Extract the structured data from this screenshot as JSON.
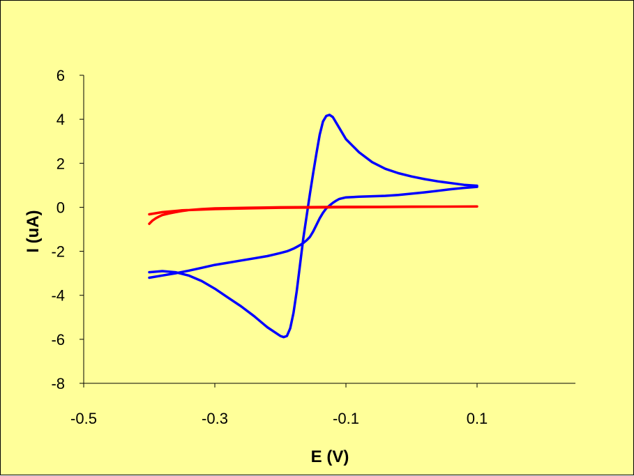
{
  "chart_data": {
    "type": "line",
    "title": "",
    "xlabel": "E (V)",
    "ylabel": "I (uA)",
    "xlim": [
      -0.5,
      0.25
    ],
    "ylim": [
      -8,
      6
    ],
    "x_ticks": [
      -0.5,
      -0.3,
      -0.1,
      0.1
    ],
    "x_tick_labels": [
      "-0.5",
      "-0.3",
      "-0.1",
      "0.1"
    ],
    "y_ticks": [
      -8,
      -6,
      -4,
      -2,
      0,
      2,
      4,
      6
    ],
    "y_tick_labels": [
      "-8",
      "-6",
      "-4",
      "-2",
      "0",
      "2",
      "4",
      "6"
    ],
    "grid": false,
    "legend": "none",
    "colors": {
      "background": "#ffff99",
      "border": "#000000"
    },
    "series": [
      {
        "color": "#0000ff",
        "x": [
          -0.4,
          -0.38,
          -0.36,
          -0.34,
          -0.32,
          -0.3,
          -0.28,
          -0.26,
          -0.24,
          -0.22,
          -0.2,
          -0.195,
          -0.19,
          -0.185,
          -0.18,
          -0.175,
          -0.17,
          -0.165,
          -0.16,
          -0.155,
          -0.15,
          -0.145,
          -0.14,
          -0.135,
          -0.13,
          -0.125,
          -0.12,
          -0.11,
          -0.1,
          -0.08,
          -0.06,
          -0.04,
          -0.02,
          0.0,
          0.02,
          0.04,
          0.06,
          0.08,
          0.1,
          0.1,
          0.08,
          0.06,
          0.04,
          0.02,
          0.0,
          -0.02,
          -0.04,
          -0.06,
          -0.08,
          -0.1,
          -0.11,
          -0.115,
          -0.12,
          -0.125,
          -0.13,
          -0.135,
          -0.14,
          -0.145,
          -0.15,
          -0.155,
          -0.16,
          -0.165,
          -0.17,
          -0.175,
          -0.18,
          -0.185,
          -0.19,
          -0.2,
          -0.21,
          -0.22,
          -0.24,
          -0.26,
          -0.28,
          -0.3,
          -0.32,
          -0.34,
          -0.36,
          -0.38,
          -0.4
        ],
        "y": [
          -2.95,
          -2.9,
          -2.95,
          -3.1,
          -3.35,
          -3.7,
          -4.1,
          -4.5,
          -4.95,
          -5.45,
          -5.85,
          -5.9,
          -5.85,
          -5.5,
          -4.8,
          -3.8,
          -2.6,
          -1.4,
          -0.4,
          0.6,
          1.55,
          2.45,
          3.3,
          3.9,
          4.15,
          4.2,
          4.1,
          3.6,
          3.1,
          2.5,
          2.05,
          1.75,
          1.55,
          1.4,
          1.28,
          1.18,
          1.1,
          1.02,
          0.98,
          0.93,
          0.88,
          0.82,
          0.75,
          0.68,
          0.62,
          0.56,
          0.52,
          0.5,
          0.48,
          0.45,
          0.38,
          0.3,
          0.2,
          0.08,
          -0.05,
          -0.25,
          -0.5,
          -0.8,
          -1.1,
          -1.35,
          -1.5,
          -1.62,
          -1.72,
          -1.8,
          -1.88,
          -1.94,
          -2.0,
          -2.08,
          -2.15,
          -2.22,
          -2.32,
          -2.42,
          -2.52,
          -2.62,
          -2.75,
          -2.88,
          -3.0,
          -3.1,
          -3.2
        ]
      },
      {
        "color": "#ff0000",
        "x": [
          -0.4,
          -0.395,
          -0.39,
          -0.385,
          -0.38,
          -0.37,
          -0.36,
          -0.35,
          -0.34,
          -0.32,
          -0.3,
          -0.25,
          -0.2,
          -0.15,
          -0.1,
          -0.05,
          0.0,
          0.05,
          0.1,
          0.1,
          0.05,
          0.0,
          -0.05,
          -0.1,
          -0.15,
          -0.2,
          -0.25,
          -0.3,
          -0.35,
          -0.38,
          -0.4
        ],
        "y": [
          -0.75,
          -0.6,
          -0.5,
          -0.42,
          -0.35,
          -0.28,
          -0.22,
          -0.17,
          -0.13,
          -0.08,
          -0.05,
          -0.02,
          0.0,
          0.01,
          0.02,
          0.02,
          0.03,
          0.03,
          0.04,
          0.04,
          0.03,
          0.02,
          0.01,
          0.0,
          -0.01,
          -0.02,
          -0.05,
          -0.08,
          -0.14,
          -0.22,
          -0.32
        ]
      }
    ]
  }
}
